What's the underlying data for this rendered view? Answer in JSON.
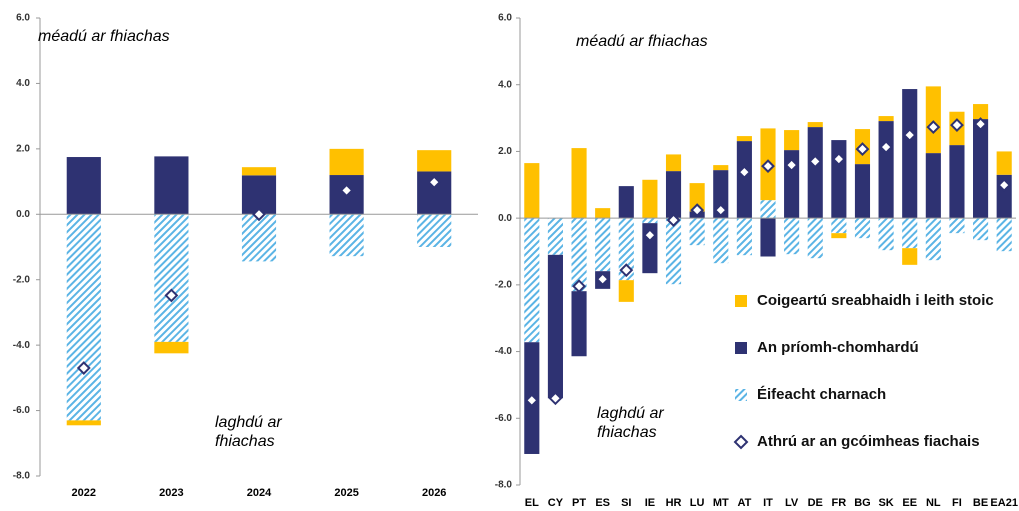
{
  "chart_data": [
    {
      "type": "bar",
      "stacked": true,
      "categories": [
        "2022",
        "2023",
        "2024",
        "2025",
        "2026"
      ],
      "series": [
        {
          "name": "Coigeartú sreabhaidh i leith stoic",
          "color": "#ffc000",
          "kind": "bar",
          "values": [
            -0.15,
            -0.35,
            0.25,
            0.8,
            0.65
          ]
        },
        {
          "name": "An príomh-chomhardú",
          "color": "#2e3272",
          "kind": "bar",
          "values": [
            1.75,
            1.77,
            1.19,
            1.2,
            1.31
          ]
        },
        {
          "name": "Éifeacht charnach",
          "color": "#5bb4e5",
          "kind": "hatched",
          "values": [
            -6.3,
            -3.9,
            -1.44,
            -1.28,
            -1.0
          ]
        },
        {
          "name": "Athrú ar an gcóimheas fiachais",
          "color": "#2e3272",
          "kind": "marker",
          "values": [
            -4.7,
            -2.48,
            0.0,
            0.73,
            0.98
          ]
        }
      ],
      "ylim": [
        -8,
        6
      ],
      "yticks": [
        {
          "value": -8,
          "label": "-8.0"
        },
        {
          "value": -6,
          "label": "-6.0"
        },
        {
          "value": -4,
          "label": "-4.0"
        },
        {
          "value": -2,
          "label": "-2.0"
        },
        {
          "value": 0,
          "label": "0.0"
        },
        {
          "value": 2,
          "label": "2.0"
        },
        {
          "value": 4,
          "label": "4.0"
        },
        {
          "value": 6,
          "label": "6.0"
        }
      ],
      "annotations": [
        {
          "lines": [
            "méadú ar fhiachas"
          ]
        },
        {
          "lines": [
            "laghdú ar",
            "fhiachas"
          ]
        }
      ]
    },
    {
      "type": "bar",
      "stacked": true,
      "categories": [
        "EL",
        "CY",
        "PT",
        "ES",
        "SI",
        "IE",
        "HR",
        "LU",
        "MT",
        "AT",
        "IT",
        "LV",
        "DE",
        "FR",
        "BG",
        "SK",
        "EE",
        "NL",
        "FI",
        "BE",
        "EA21"
      ],
      "series": [
        {
          "name": "Coigeartú sreabhaidh i leith stoic",
          "color": "#ffc000",
          "kind": "bar",
          "values": [
            1.65,
            0,
            2.1,
            0.3,
            -0.65,
            1.15,
            0.5,
            0.85,
            0.15,
            0.15,
            2.15,
            0.6,
            0.15,
            -0.15,
            1.05,
            0.15,
            -0.5,
            2.0,
            1.0,
            0.45,
            0.7
          ]
        },
        {
          "name": "An príomh-chomhardú",
          "color": "#2e3272",
          "kind": "bar",
          "values": [
            -3.35,
            -4.3,
            -1.95,
            -0.53,
            0.96,
            -1.5,
            1.41,
            0.2,
            1.44,
            2.31,
            -1.15,
            2.04,
            2.73,
            2.34,
            1.62,
            2.91,
            3.87,
            1.95,
            2.19,
            2.97,
            1.3
          ]
        },
        {
          "name": "Éifeacht charnach",
          "color": "#5bb4e5",
          "kind": "hatched",
          "values": [
            -3.72,
            -1.1,
            -2.19,
            -1.59,
            -1.86,
            -0.15,
            -1.98,
            -0.81,
            -1.35,
            -1.11,
            0.54,
            -1.08,
            -1.2,
            -0.45,
            -0.6,
            -0.96,
            -0.9,
            -1.26,
            -0.45,
            -0.66,
            -0.99
          ]
        },
        {
          "name": "Athrú ar an gcóimheas fiachais",
          "color": "#2e3272",
          "kind": "marker",
          "values": [
            -5.46,
            -5.4,
            -2.04,
            -1.83,
            -1.56,
            -0.51,
            -0.06,
            0.24,
            0.24,
            1.38,
            1.56,
            1.59,
            1.7,
            1.77,
            2.07,
            2.13,
            2.49,
            2.73,
            2.79,
            2.82,
            0.99
          ]
        }
      ],
      "ylim": [
        -8,
        6
      ],
      "yticks": [
        {
          "value": -8,
          "label": "-8.0"
        },
        {
          "value": -6,
          "label": "-6.0"
        },
        {
          "value": -4,
          "label": "-4.0"
        },
        {
          "value": -2,
          "label": "-2.0"
        },
        {
          "value": 0,
          "label": "0.0"
        },
        {
          "value": 2,
          "label": "2.0"
        },
        {
          "value": 4,
          "label": "4.0"
        },
        {
          "value": 6,
          "label": "6.0"
        }
      ],
      "annotations": [
        {
          "lines": [
            "méadú ar fhiachas"
          ]
        },
        {
          "lines": [
            "laghdú ar",
            "fhiachas"
          ]
        }
      ],
      "legend": "lower right"
    }
  ]
}
